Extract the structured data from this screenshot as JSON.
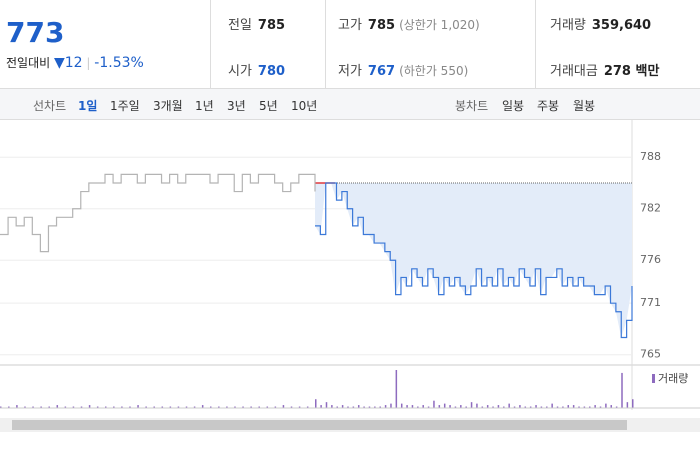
{
  "header": {
    "price": "773",
    "change_label": "전일대비",
    "change": "▼12",
    "change_pct": "-1.53%"
  },
  "info": [
    {
      "label": "전일",
      "value": "785"
    },
    {
      "label": "고가",
      "value": "785",
      "note": "(상한가 1,020)"
    },
    {
      "label": "거래량",
      "value": "359,640"
    },
    {
      "label": "시가",
      "value": "780"
    },
    {
      "label": "저가",
      "value": "767",
      "note": "(하한가 550)"
    },
    {
      "label": "거래대금",
      "value": "278 백만"
    }
  ],
  "tabs": {
    "line_label": "선차트",
    "line": [
      "1일",
      "1주일",
      "3개월",
      "1년",
      "3년",
      "5년",
      "10년"
    ],
    "candle_label": "봉차트",
    "candle": [
      "일봉",
      "주봉",
      "월봉"
    ]
  },
  "chart_data": {
    "type": "line",
    "ylim": [
      763.8,
      792.1
    ],
    "yticks": [
      788,
      782,
      776,
      771,
      765
    ],
    "baseline": 785,
    "baseline_color": "#e0393e",
    "fill": "#e3ecf9",
    "series": [
      {
        "color": "#b4b4b4",
        "values": [
          779,
          781,
          780,
          781,
          779,
          777,
          780,
          781,
          781,
          782,
          784,
          785,
          785,
          786,
          785,
          786,
          786,
          785,
          786,
          786,
          785,
          786,
          785,
          786,
          786,
          786,
          785,
          786,
          786,
          784,
          786,
          785,
          786,
          786,
          785,
          784,
          785,
          786,
          786,
          784
        ]
      },
      {
        "color": "#3b78d8",
        "values": [
          780,
          779,
          785,
          785,
          783,
          784,
          782,
          780,
          781,
          779,
          779,
          778,
          778,
          777,
          776,
          772,
          774,
          773,
          775,
          774,
          773,
          775,
          774,
          772,
          774,
          773,
          774,
          773,
          772,
          773,
          775,
          773,
          774,
          773,
          775,
          773,
          774,
          773,
          775,
          774,
          773,
          775,
          772,
          774,
          774,
          775,
          773,
          774,
          773,
          774,
          773,
          773,
          772,
          772,
          773,
          771,
          770,
          767,
          769,
          773
        ]
      }
    ],
    "volume": {
      "name": "거래량",
      "color": "#8e6bbf",
      "values": [
        1,
        1,
        2,
        1,
        1,
        1,
        1,
        2,
        1,
        1,
        1,
        2,
        1,
        1,
        1,
        1,
        1,
        2,
        1,
        1,
        1,
        1,
        1,
        1,
        1,
        2,
        1,
        1,
        1,
        1,
        1,
        1,
        1,
        1,
        1,
        2,
        1,
        1,
        1,
        3,
        6,
        2,
        4,
        2,
        1,
        2,
        1,
        1,
        2,
        1,
        1,
        1,
        1,
        2,
        3,
        26,
        3,
        2,
        2,
        1,
        2,
        1,
        5,
        2,
        3,
        2,
        1,
        2,
        1,
        4,
        3,
        1,
        2,
        1,
        2,
        1,
        3,
        1,
        2,
        1,
        1,
        2,
        1,
        1,
        3,
        1,
        1,
        2,
        2,
        1,
        1,
        1,
        2,
        1,
        3,
        2,
        1,
        24,
        4,
        6
      ]
    }
  }
}
